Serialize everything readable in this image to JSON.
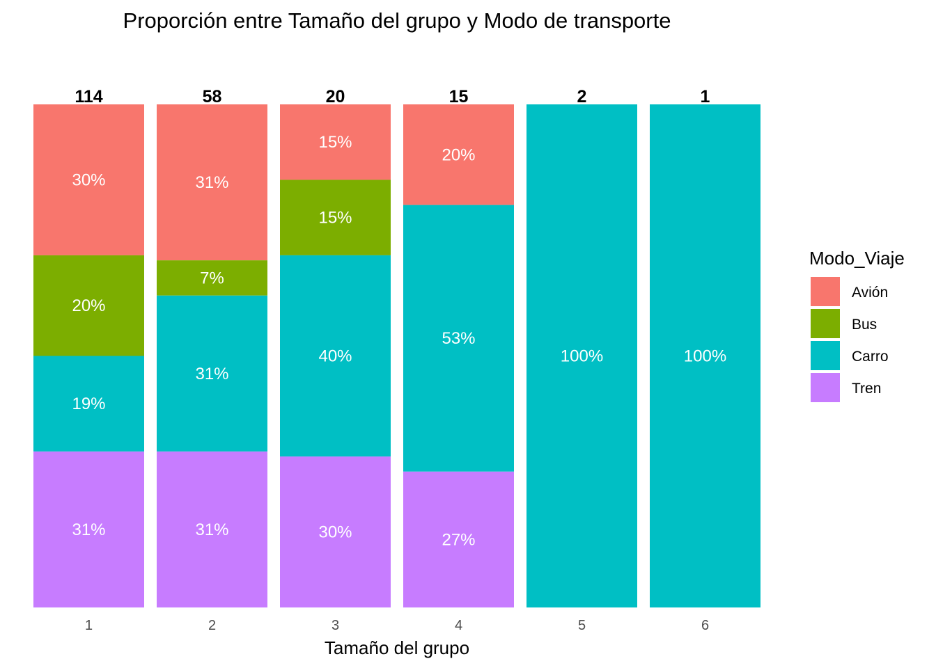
{
  "chart_data": {
    "type": "bar",
    "stacked": "percent",
    "title": "Proporción entre Tamaño del grupo y Modo de transporte",
    "xlabel": "Tamaño del grupo",
    "ylabel": "",
    "categories": [
      "1",
      "2",
      "3",
      "4",
      "5",
      "6"
    ],
    "totals": [
      "114",
      "58",
      "20",
      "15",
      "2",
      "1"
    ],
    "legend": {
      "title": "Modo_Viaje",
      "position": "right"
    },
    "grid": false,
    "series": [
      {
        "name": "Avión",
        "color": "#F8766D",
        "values": [
          30,
          31,
          15,
          20,
          0,
          0
        ],
        "labels": [
          "30%",
          "31%",
          "15%",
          "20%",
          "",
          ""
        ]
      },
      {
        "name": "Bus",
        "color": "#7CAE00",
        "values": [
          20,
          7,
          15,
          0,
          0,
          0
        ],
        "labels": [
          "20%",
          "7%",
          "15%",
          "",
          "",
          ""
        ]
      },
      {
        "name": "Carro",
        "color": "#00BFC4",
        "values": [
          19,
          31,
          40,
          53,
          100,
          100
        ],
        "labels": [
          "19%",
          "31%",
          "40%",
          "53%",
          "100%",
          "100%"
        ]
      },
      {
        "name": "Tren",
        "color": "#C77CFF",
        "values": [
          31,
          31,
          30,
          27,
          0,
          0
        ],
        "labels": [
          "31%",
          "31%",
          "30%",
          "27%",
          "",
          ""
        ]
      }
    ]
  }
}
